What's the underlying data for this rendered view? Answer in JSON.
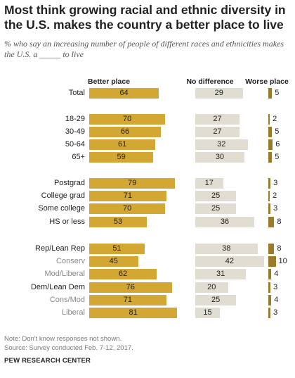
{
  "header": {
    "title": "Most think growing racial and ethnic diversity in the U.S. makes the country a better place to live",
    "subtitle": "% who say an increasing number of people of different races and ethnicities makes the U.S. a _____ to live"
  },
  "columns": {
    "better": "Better place",
    "nodiff": "No difference",
    "worse": "Worse place"
  },
  "colors": {
    "better": "#d2a733",
    "nodiff": "#e1ddd2",
    "worse": "#9b7a29"
  },
  "chart_data": {
    "type": "bar",
    "categories": [
      "Total",
      "18-29",
      "30-49",
      "50-64",
      "65+",
      "Postgrad",
      "College grad",
      "Some college",
      "HS or less",
      "Rep/Lean Rep",
      "Conserv",
      "Mod/Liberal",
      "Dem/Lean Dem",
      "Cons/Mod",
      "Liberal"
    ],
    "subcategories": [
      "Conserv",
      "Mod/Liberal",
      "Cons/Mod",
      "Liberal"
    ],
    "series": [
      {
        "name": "Better place",
        "values": [
          64,
          70,
          66,
          61,
          59,
          79,
          71,
          70,
          53,
          51,
          45,
          62,
          76,
          71,
          81
        ]
      },
      {
        "name": "No difference",
        "values": [
          29,
          27,
          27,
          32,
          30,
          17,
          25,
          25,
          36,
          38,
          42,
          31,
          20,
          25,
          15
        ]
      },
      {
        "name": "Worse place",
        "values": [
          5,
          2,
          5,
          6,
          5,
          3,
          2,
          3,
          8,
          8,
          10,
          4,
          3,
          4,
          3
        ]
      }
    ]
  },
  "notes": {
    "note": "Note: Don't know responses not shown.",
    "source": "Source: Survey conducted Feb. 7-12, 2017.",
    "org": "PEW RESEARCH CENTER"
  }
}
